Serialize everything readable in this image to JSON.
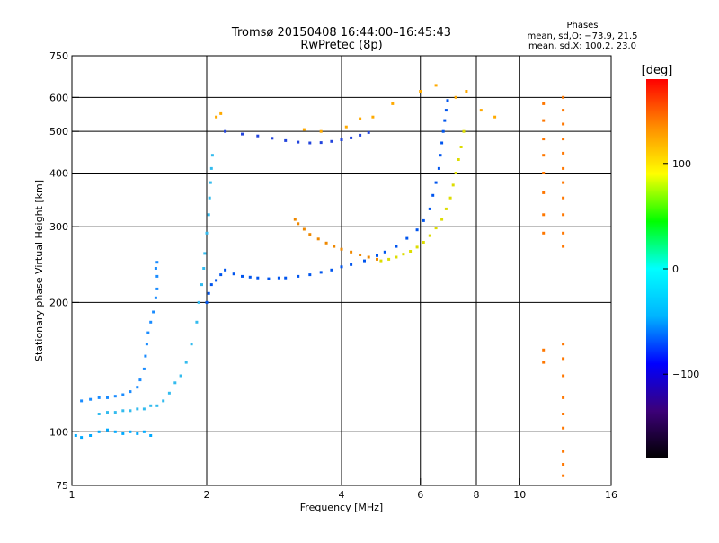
{
  "title": {
    "line1": "Tromsø 20150408 16:44:00–16:45:43",
    "line2": "RwPretec (8p)"
  },
  "stats": {
    "heading": "Phases",
    "line1": "mean, sd,O: −73.9, 21.5",
    "line2": "mean, sd,X: 100.2, 23.0"
  },
  "chart_data": {
    "type": "scatter",
    "xlabel": "Frequency [MHz]",
    "ylabel": "Stationary phase Virtual Height [km]",
    "x_scale": "log",
    "y_scale": "log",
    "xlim": [
      1,
      16
    ],
    "ylim": [
      75,
      750
    ],
    "x_ticks": [
      1,
      2,
      4,
      6,
      8,
      10,
      16
    ],
    "x_tick_labels": [
      "1",
      "2",
      "4",
      "6",
      "8",
      "10",
      "16"
    ],
    "y_ticks": [
      75,
      100,
      200,
      300,
      400,
      500,
      600,
      750
    ],
    "y_tick_labels": [
      "75",
      "100",
      "200",
      "300",
      "400",
      "500",
      "600",
      "750"
    ],
    "grid": true,
    "colorbar": {
      "label": "[deg]",
      "range": [
        -180,
        180
      ],
      "ticks": [
        100,
        0,
        -100
      ],
      "tick_labels": [
        "100",
        "0",
        "−100"
      ],
      "colormap": [
        "#000000",
        "#3c0078",
        "#0000ff",
        "#00b4ff",
        "#00ffff",
        "#00ff00",
        "#ffff00",
        "#ff8c00",
        "#ff0000"
      ]
    },
    "series": [
      {
        "color": "#00aaff",
        "points": [
          [
            1.02,
            98
          ],
          [
            1.05,
            97
          ],
          [
            1.1,
            98
          ],
          [
            1.15,
            100
          ],
          [
            1.2,
            101
          ],
          [
            1.25,
            100
          ],
          [
            1.3,
            99
          ],
          [
            1.35,
            100
          ],
          [
            1.4,
            99
          ],
          [
            1.45,
            100
          ],
          [
            1.5,
            98
          ]
        ]
      },
      {
        "color": "#1a8cff",
        "points": [
          [
            1.05,
            118
          ],
          [
            1.1,
            119
          ],
          [
            1.15,
            120
          ],
          [
            1.2,
            120
          ],
          [
            1.25,
            121
          ],
          [
            1.3,
            122
          ],
          [
            1.35,
            124
          ],
          [
            1.4,
            127
          ],
          [
            1.42,
            132
          ],
          [
            1.45,
            140
          ],
          [
            1.46,
            150
          ],
          [
            1.47,
            160
          ],
          [
            1.48,
            170
          ],
          [
            1.5,
            180
          ],
          [
            1.52,
            190
          ],
          [
            1.54,
            205
          ],
          [
            1.55,
            215
          ],
          [
            1.55,
            230
          ],
          [
            1.54,
            240
          ],
          [
            1.55,
            248
          ]
        ]
      },
      {
        "color": "#33bbee",
        "points": [
          [
            1.15,
            110
          ],
          [
            1.2,
            111
          ],
          [
            1.25,
            111
          ],
          [
            1.3,
            112
          ],
          [
            1.35,
            112
          ],
          [
            1.4,
            113
          ],
          [
            1.45,
            113
          ],
          [
            1.5,
            115
          ],
          [
            1.55,
            115
          ],
          [
            1.6,
            118
          ],
          [
            1.65,
            123
          ],
          [
            1.7,
            130
          ],
          [
            1.75,
            135
          ],
          [
            1.8,
            145
          ],
          [
            1.85,
            160
          ],
          [
            1.9,
            180
          ],
          [
            1.92,
            200
          ],
          [
            1.95,
            220
          ],
          [
            1.97,
            240
          ],
          [
            1.98,
            260
          ],
          [
            2.0,
            290
          ],
          [
            2.02,
            320
          ],
          [
            2.03,
            350
          ],
          [
            2.04,
            380
          ],
          [
            2.05,
            410
          ],
          [
            2.06,
            440
          ]
        ]
      },
      {
        "color": "#0055ee",
        "points": [
          [
            2.0,
            200
          ],
          [
            2.02,
            210
          ],
          [
            2.05,
            220
          ],
          [
            2.1,
            225
          ],
          [
            2.15,
            232
          ],
          [
            2.2,
            238
          ],
          [
            2.3,
            233
          ],
          [
            2.4,
            230
          ],
          [
            2.5,
            229
          ],
          [
            2.6,
            228
          ],
          [
            2.75,
            227
          ],
          [
            2.9,
            228
          ],
          [
            3.0,
            228
          ],
          [
            3.2,
            230
          ],
          [
            3.4,
            232
          ],
          [
            3.6,
            235
          ],
          [
            3.8,
            238
          ],
          [
            4.0,
            242
          ],
          [
            4.2,
            245
          ],
          [
            4.5,
            250
          ],
          [
            4.8,
            257
          ],
          [
            5.0,
            262
          ],
          [
            5.3,
            270
          ],
          [
            5.6,
            282
          ],
          [
            5.9,
            295
          ],
          [
            6.1,
            310
          ],
          [
            6.3,
            330
          ],
          [
            6.4,
            355
          ],
          [
            6.5,
            380
          ],
          [
            6.6,
            410
          ],
          [
            6.65,
            440
          ],
          [
            6.7,
            470
          ],
          [
            6.75,
            500
          ],
          [
            6.8,
            530
          ],
          [
            6.85,
            560
          ],
          [
            6.9,
            590
          ]
        ]
      },
      {
        "color": "#2244dd",
        "points": [
          [
            2.2,
            500
          ],
          [
            2.4,
            493
          ],
          [
            2.6,
            488
          ],
          [
            2.8,
            482
          ],
          [
            3.0,
            476
          ],
          [
            3.2,
            472
          ],
          [
            3.4,
            470
          ],
          [
            3.6,
            471
          ],
          [
            3.8,
            474
          ],
          [
            4.0,
            478
          ],
          [
            4.2,
            483
          ],
          [
            4.4,
            490
          ],
          [
            4.6,
            497
          ]
        ]
      },
      {
        "color": "#ee8800",
        "points": [
          [
            3.15,
            312
          ],
          [
            3.2,
            305
          ],
          [
            3.3,
            296
          ],
          [
            3.4,
            288
          ],
          [
            3.55,
            281
          ],
          [
            3.7,
            275
          ],
          [
            3.85,
            270
          ],
          [
            4.0,
            266
          ],
          [
            4.2,
            262
          ],
          [
            4.4,
            258
          ],
          [
            4.6,
            255
          ],
          [
            4.8,
            252
          ]
        ]
      },
      {
        "color": "#dddd00",
        "points": [
          [
            4.9,
            250
          ],
          [
            5.1,
            252
          ],
          [
            5.3,
            255
          ],
          [
            5.5,
            259
          ],
          [
            5.7,
            263
          ],
          [
            5.9,
            269
          ],
          [
            6.1,
            276
          ],
          [
            6.3,
            286
          ],
          [
            6.5,
            298
          ],
          [
            6.7,
            312
          ],
          [
            6.85,
            330
          ],
          [
            7.0,
            350
          ],
          [
            7.1,
            375
          ],
          [
            7.2,
            400
          ],
          [
            7.3,
            430
          ],
          [
            7.4,
            460
          ],
          [
            7.5,
            500
          ]
        ]
      },
      {
        "color": "#ffaa00",
        "points": [
          [
            2.1,
            540
          ],
          [
            2.15,
            550
          ],
          [
            3.3,
            505
          ],
          [
            3.6,
            500
          ],
          [
            4.1,
            512
          ],
          [
            4.4,
            535
          ],
          [
            4.7,
            540
          ],
          [
            5.2,
            580
          ],
          [
            6.0,
            620
          ],
          [
            6.5,
            640
          ],
          [
            7.2,
            600
          ],
          [
            7.6,
            620
          ],
          [
            8.2,
            560
          ],
          [
            8.8,
            540
          ]
        ]
      },
      {
        "color": "#ff7700",
        "points": [
          [
            12.5,
            600
          ],
          [
            12.5,
            560
          ],
          [
            12.5,
            520
          ],
          [
            12.5,
            480
          ],
          [
            12.5,
            445
          ],
          [
            12.5,
            410
          ],
          [
            12.5,
            380
          ],
          [
            12.5,
            350
          ],
          [
            12.5,
            320
          ],
          [
            12.5,
            290
          ],
          [
            12.5,
            270
          ],
          [
            12.5,
            160
          ],
          [
            12.5,
            148
          ],
          [
            12.5,
            135
          ],
          [
            12.5,
            120
          ],
          [
            12.5,
            110
          ],
          [
            12.5,
            102
          ],
          [
            12.5,
            90
          ],
          [
            12.5,
            84
          ],
          [
            12.5,
            79
          ],
          [
            11.3,
            580
          ],
          [
            11.3,
            530
          ],
          [
            11.3,
            480
          ],
          [
            11.3,
            440
          ],
          [
            11.3,
            400
          ],
          [
            11.3,
            360
          ],
          [
            11.3,
            320
          ],
          [
            11.3,
            290
          ],
          [
            11.3,
            155
          ],
          [
            11.3,
            145
          ]
        ]
      }
    ]
  }
}
